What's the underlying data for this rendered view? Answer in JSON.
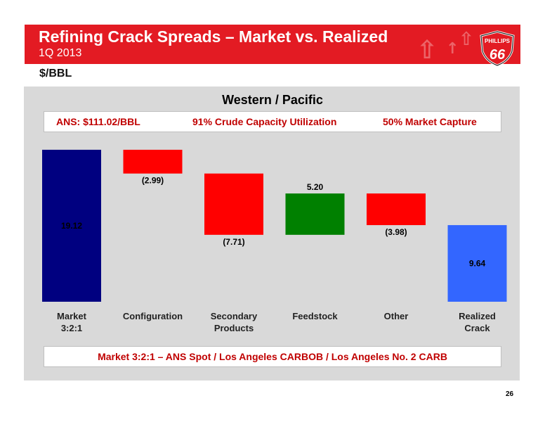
{
  "header": {
    "title": "Refining Crack Spreads – Market vs. Realized",
    "subtitle": "1Q 2013",
    "logo_text_top": "PHILLIPS",
    "logo_text_main": "66"
  },
  "unit_label": "$/BBL",
  "panel": {
    "title": "Western / Pacific",
    "info": {
      "crude": "ANS:  $111.02/BBL",
      "utilization": "91% Crude Capacity Utilization",
      "capture": "50% Market Capture"
    },
    "footer": "Market 3:2:1 – ANS Spot / Los Angeles CARBOB / Los Angeles No. 2 CARB"
  },
  "page_number": "26",
  "colors": {
    "brand_red": "#e31b23",
    "market_bar": "#000080",
    "negative_bar": "#ff0000",
    "positive_bar": "#008000",
    "realized_bar": "#3366ff",
    "panel_bg": "#d9d9d9"
  },
  "chart_data": {
    "type": "waterfall",
    "title": "Western / Pacific",
    "categories": [
      [
        "Market",
        "3:2:1"
      ],
      [
        "Configuration"
      ],
      [
        "Secondary",
        "Products"
      ],
      [
        "Feedstock"
      ],
      [
        "Other"
      ],
      [
        "Realized",
        "Crack"
      ]
    ],
    "values": [
      19.12,
      -2.99,
      -7.71,
      5.2,
      -3.98,
      9.64
    ],
    "labels": [
      "19.12",
      "(2.99)",
      "(7.71)",
      "5.20",
      "(3.98)",
      "9.64"
    ],
    "kinds": [
      "total",
      "delta",
      "delta",
      "delta",
      "delta",
      "total"
    ],
    "ylabel": "$/BBL",
    "ylim": [
      0,
      19.12
    ],
    "grid": false,
    "legend": "none"
  }
}
